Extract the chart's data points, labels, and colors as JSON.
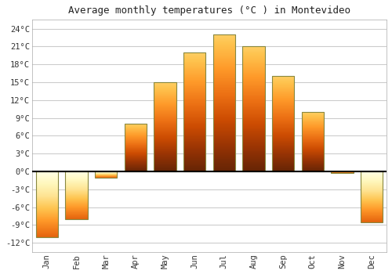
{
  "title": "Average monthly temperatures (°C ) in Montevideo",
  "months": [
    "Jan",
    "Feb",
    "Mar",
    "Apr",
    "May",
    "Jun",
    "Jul",
    "Aug",
    "Sep",
    "Oct",
    "Nov",
    "Dec"
  ],
  "values": [
    -11,
    -8,
    -1,
    8,
    15,
    20,
    23,
    21,
    16,
    10,
    -0.3,
    -8.5
  ],
  "bar_color_top": "#FFD966",
  "bar_color_bottom": "#FFA000",
  "bar_edge_color": "#888844",
  "background_color": "#ffffff",
  "plot_bg_color": "#ffffff",
  "grid_color": "#cccccc",
  "yticks": [
    -12,
    -9,
    -6,
    -3,
    0,
    3,
    6,
    9,
    12,
    15,
    18,
    21,
    24
  ],
  "ytick_labels": [
    "-12°C",
    "-9°C",
    "-6°C",
    "-3°C",
    "0°C",
    "3°C",
    "6°C",
    "9°C",
    "12°C",
    "15°C",
    "18°C",
    "21°C",
    "24°C"
  ],
  "ylim": [
    -13.5,
    25.5
  ],
  "title_fontsize": 9,
  "tick_fontsize": 7.5,
  "figsize": [
    5.0,
    3.5
  ],
  "dpi": 100
}
